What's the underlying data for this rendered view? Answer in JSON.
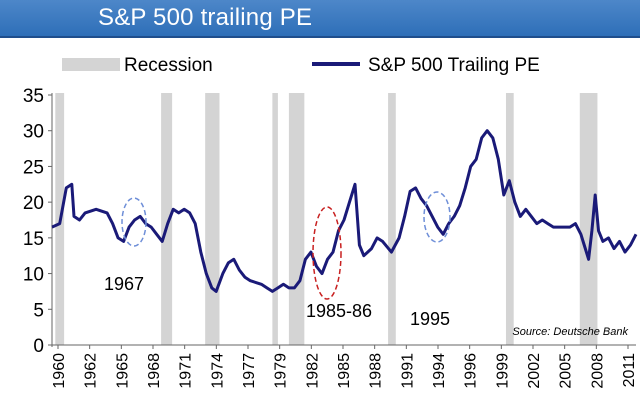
{
  "header": {
    "title": "S&P 500 trailing PE"
  },
  "legend": {
    "recession_label": "Recession",
    "series_label": "S&P 500 Trailing PE"
  },
  "annotations": {
    "a1967": "1967",
    "a1985": "1985-86",
    "a1995": "1995",
    "source": "Source: Deutsche Bank"
  },
  "colors": {
    "title_bar": "#3a78c0",
    "line": "#1a1a78",
    "recession": "#d4d4d4",
    "ellipse_blue": "#6f8fd8",
    "ellipse_red": "#c82020"
  },
  "chart_data": {
    "type": "line",
    "title": "S&P 500 trailing PE",
    "xlabel": "",
    "ylabel": "",
    "ylim": [
      0,
      35
    ],
    "yticks": [
      0,
      5,
      10,
      15,
      20,
      25,
      30,
      35
    ],
    "xlim": [
      1960,
      2013
    ],
    "xticks": [
      "1960",
      "1962",
      "1965",
      "1968",
      "1971",
      "1974",
      "1977",
      "1979",
      "1982",
      "1985",
      "1988",
      "1991",
      "1994",
      "1996",
      "1999",
      "2002",
      "2005",
      "2008",
      "2011"
    ],
    "grid": false,
    "legend_position": "top",
    "recessions": [
      [
        1960.3,
        1961.1
      ],
      [
        1969.9,
        1970.9
      ],
      [
        1973.9,
        1975.2
      ],
      [
        1980.0,
        1980.5
      ],
      [
        1981.5,
        1982.9
      ],
      [
        1990.5,
        1991.2
      ],
      [
        2001.2,
        2001.9
      ],
      [
        2007.9,
        2009.5
      ]
    ],
    "series": [
      {
        "name": "S&P 500 Trailing PE",
        "x": [
          1960.0,
          1960.7,
          1961.3,
          1961.8,
          1962.0,
          1962.5,
          1963.0,
          1964.0,
          1965.0,
          1965.5,
          1966.0,
          1966.5,
          1967.0,
          1967.5,
          1968.0,
          1968.5,
          1969.0,
          1969.5,
          1970.0,
          1970.5,
          1971.0,
          1971.5,
          1972.0,
          1972.5,
          1973.0,
          1973.5,
          1974.0,
          1974.5,
          1974.9,
          1975.5,
          1976.0,
          1976.5,
          1977.0,
          1977.5,
          1978.0,
          1979.0,
          1979.5,
          1980.0,
          1980.5,
          1981.0,
          1981.5,
          1982.0,
          1982.5,
          1983.0,
          1983.5,
          1984.0,
          1984.5,
          1985.0,
          1985.5,
          1986.0,
          1986.5,
          1987.0,
          1987.5,
          1987.9,
          1988.3,
          1989.0,
          1989.5,
          1990.0,
          1990.8,
          1991.5,
          1992.0,
          1992.5,
          1993.0,
          1993.5,
          1994.0,
          1994.5,
          1995.0,
          1995.5,
          1996.0,
          1996.5,
          1997.0,
          1997.5,
          1998.0,
          1998.5,
          1999.0,
          1999.5,
          2000.0,
          2000.5,
          2001.0,
          2001.5,
          2002.0,
          2002.5,
          2003.0,
          2003.5,
          2004.0,
          2004.5,
          2005.0,
          2005.5,
          2006.0,
          2006.5,
          2007.0,
          2007.5,
          2008.0,
          2008.3,
          2008.7,
          2009.0,
          2009.3,
          2009.6,
          2010.0,
          2010.5,
          2011.0,
          2011.5,
          2012.0,
          2012.5,
          2013.0
        ],
        "values": [
          16.5,
          17.0,
          22.0,
          22.5,
          18.0,
          17.5,
          18.5,
          19.0,
          18.5,
          17.0,
          15.0,
          14.5,
          16.5,
          17.5,
          18.0,
          17.0,
          16.5,
          15.5,
          14.5,
          17.0,
          19.0,
          18.5,
          19.0,
          18.5,
          17.0,
          13.0,
          10.0,
          8.0,
          7.5,
          10.0,
          11.5,
          12.0,
          10.5,
          9.5,
          9.0,
          8.5,
          8.0,
          7.5,
          8.0,
          8.5,
          8.0,
          8.0,
          9.0,
          12.0,
          13.0,
          11.0,
          10.0,
          12.0,
          13.0,
          16.0,
          17.5,
          20.0,
          22.5,
          14.0,
          12.5,
          13.5,
          15.0,
          14.5,
          13.0,
          15.0,
          18.0,
          21.5,
          22.0,
          20.5,
          19.5,
          18.0,
          16.5,
          15.5,
          17.0,
          18.0,
          19.5,
          22.0,
          25.0,
          26.0,
          29.0,
          30.0,
          29.0,
          26.0,
          21.0,
          23.0,
          20.0,
          18.0,
          19.0,
          18.0,
          17.0,
          17.5,
          17.0,
          16.5,
          16.5,
          16.5,
          16.5,
          17.0,
          15.5,
          14.0,
          12.0,
          16.0,
          21.0,
          16.0,
          14.5,
          15.0,
          13.5,
          14.5,
          13.0,
          14.0,
          15.5
        ]
      }
    ]
  }
}
